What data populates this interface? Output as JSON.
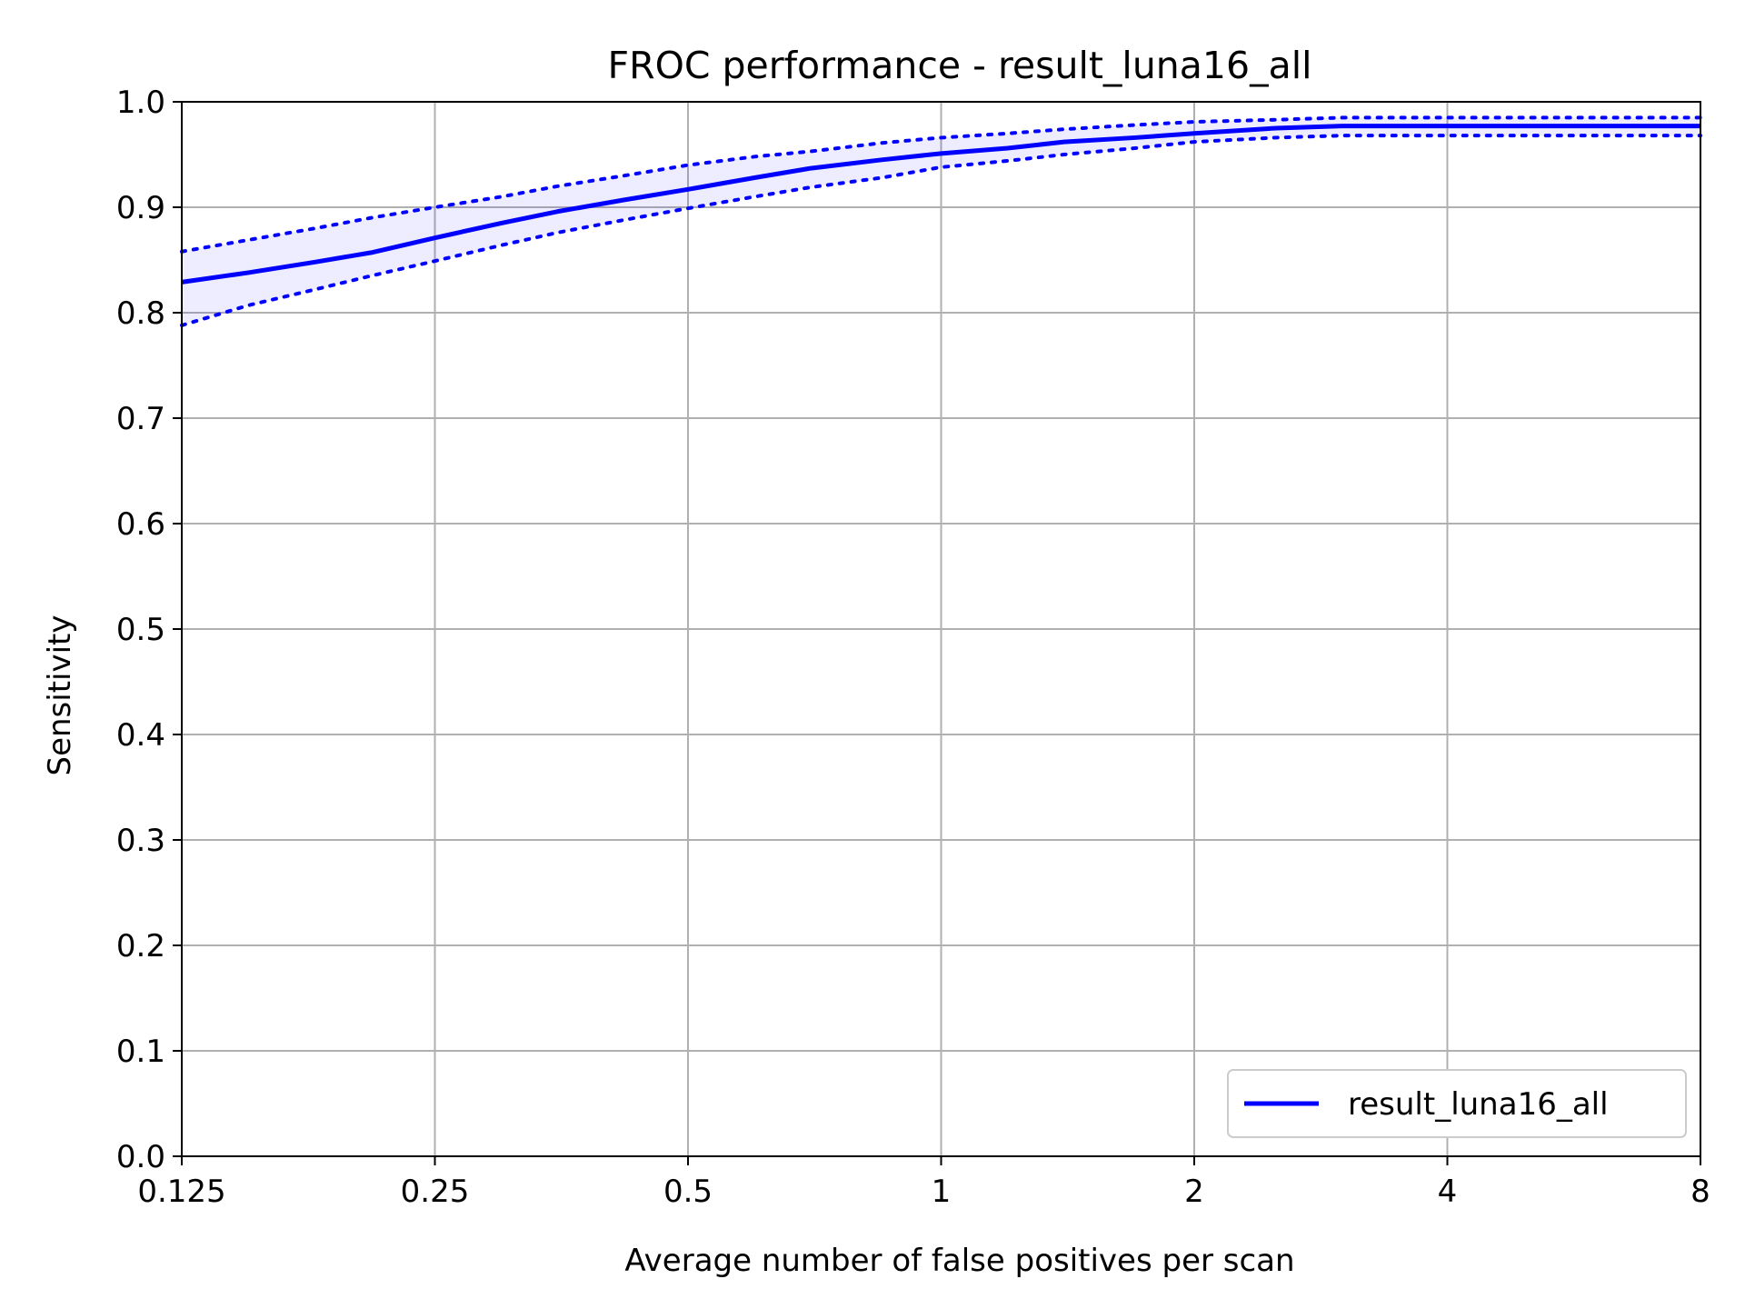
{
  "chart_data": {
    "type": "line",
    "title": "FROC performance - result_luna16_all",
    "xlabel": "Average number of false positives per scan",
    "ylabel": "Sensitivity",
    "xscale": "log2",
    "xlim": [
      0.125,
      8
    ],
    "ylim": [
      0.0,
      1.0
    ],
    "xticks": [
      0.125,
      0.25,
      0.5,
      1,
      2,
      4,
      8
    ],
    "xtick_labels": [
      "0.125",
      "0.25",
      "0.5",
      "1",
      "2",
      "4",
      "8"
    ],
    "yticks": [
      0.0,
      0.1,
      0.2,
      0.3,
      0.4,
      0.5,
      0.6,
      0.7,
      0.8,
      0.9,
      1.0
    ],
    "ytick_labels": [
      "0.0",
      "0.1",
      "0.2",
      "0.3",
      "0.4",
      "0.5",
      "0.6",
      "0.7",
      "0.8",
      "0.9",
      "1.0"
    ],
    "grid": true,
    "legend_position": "bottom-right",
    "series": [
      {
        "name": "result_luna16_all",
        "color": "#0000ff",
        "x": [
          0.125,
          0.15,
          0.18,
          0.21,
          0.25,
          0.3,
          0.35,
          0.42,
          0.5,
          0.6,
          0.7,
          0.85,
          1.0,
          1.2,
          1.4,
          1.7,
          2.0,
          2.5,
          3.0,
          4.0,
          5.0,
          6.5,
          8.0
        ],
        "y": [
          0.829,
          0.838,
          0.848,
          0.857,
          0.871,
          0.885,
          0.896,
          0.907,
          0.917,
          0.928,
          0.937,
          0.945,
          0.951,
          0.956,
          0.962,
          0.966,
          0.97,
          0.975,
          0.977,
          0.977,
          0.977,
          0.977,
          0.977
        ],
        "ci_upper": [
          0.858,
          0.869,
          0.88,
          0.89,
          0.9,
          0.91,
          0.92,
          0.93,
          0.94,
          0.948,
          0.953,
          0.961,
          0.966,
          0.97,
          0.974,
          0.978,
          0.981,
          0.983,
          0.985,
          0.985,
          0.985,
          0.985,
          0.985
        ],
        "ci_lower": [
          0.788,
          0.807,
          0.822,
          0.835,
          0.849,
          0.864,
          0.876,
          0.888,
          0.899,
          0.91,
          0.919,
          0.928,
          0.938,
          0.944,
          0.95,
          0.956,
          0.962,
          0.966,
          0.968,
          0.968,
          0.968,
          0.968,
          0.968
        ]
      }
    ]
  }
}
